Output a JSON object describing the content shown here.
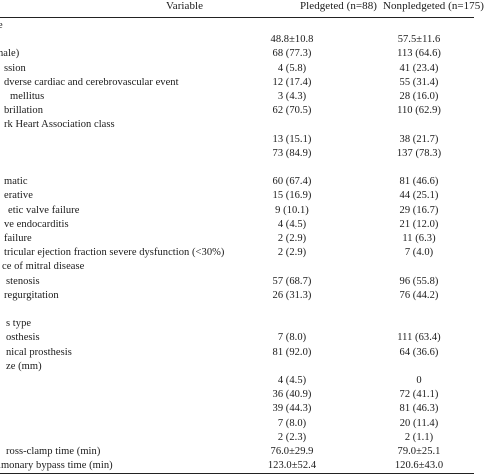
{
  "header": {
    "variable": "Variable",
    "pledgeted": "Pledgeted (n=88)",
    "nonpledgeted": "Nonpledgeted (n=175)"
  },
  "rows": [
    {
      "label": "e",
      "c1": "",
      "c2": ""
    },
    {
      "label": "",
      "c1": "48.8±10.8",
      "c2": "57.5±11.6"
    },
    {
      "label": "nale)",
      "c1": "68 (77.3)",
      "c2": "113 (64.6)"
    },
    {
      "label": "ssion",
      "c1": "4 (5.8)",
      "c2": "41 (23.4)"
    },
    {
      "label": "dverse cardiac and cerebrovascular event",
      "c1": "12 (17.4)",
      "c2": "55 (31.4)"
    },
    {
      "label": "mellitus",
      "c1": "3 (4.3)",
      "c2": "28 (16.0)"
    },
    {
      "label": "brillation",
      "c1": "62 (70.5)",
      "c2": "110 (62.9)"
    },
    {
      "label": "rk Heart Association class",
      "c1": "",
      "c2": ""
    },
    {
      "label": "",
      "c1": "13 (15.1)",
      "c2": "38 (21.7)"
    },
    {
      "label": "",
      "c1": "73 (84.9)",
      "c2": "137 (78.3)"
    },
    {
      "label": "",
      "c1": "",
      "c2": ""
    },
    {
      "label": "matic",
      "c1": "60 (67.4)",
      "c2": "81 (46.6)"
    },
    {
      "label": "erative",
      "c1": "15 (16.9)",
      "c2": "44 (25.1)"
    },
    {
      "label": "etic valve failure",
      "c1": "9 (10.1)",
      "c2": "29 (16.7)"
    },
    {
      "label": "ve endocarditis",
      "c1": "4 (4.5)",
      "c2": "21 (12.0)"
    },
    {
      "label": "failure",
      "c1": "2 (2.9)",
      "c2": "11 (6.3)"
    },
    {
      "label": "tricular ejection fraction severe dysfunction (<30%)",
      "c1": "2 (2.9)",
      "c2": "7 (4.0)"
    },
    {
      "label": "ce of mitral disease",
      "c1": "",
      "c2": ""
    },
    {
      "label": "stenosis",
      "c1": "57 (68.7)",
      "c2": "96 (55.8)"
    },
    {
      "label": "regurgitation",
      "c1": "26 (31.3)",
      "c2": "76 (44.2)"
    },
    {
      "label": "",
      "c1": "",
      "c2": ""
    },
    {
      "label": "s type",
      "c1": "",
      "c2": ""
    },
    {
      "label": "osthesis",
      "c1": "7 (8.0)",
      "c2": "111 (63.4)"
    },
    {
      "label": "nical prosthesis",
      "c1": "81 (92.0)",
      "c2": "64 (36.6)"
    },
    {
      "label": "ze (mm)",
      "c1": "",
      "c2": ""
    },
    {
      "label": "",
      "c1": "4 (4.5)",
      "c2": "0"
    },
    {
      "label": "",
      "c1": "36 (40.9)",
      "c2": "72 (41.1)"
    },
    {
      "label": "",
      "c1": "39 (44.3)",
      "c2": "81 (46.3)"
    },
    {
      "label": "",
      "c1": "7 (8.0)",
      "c2": "20 (11.4)"
    },
    {
      "label": "",
      "c1": "2 (2.3)",
      "c2": "2 (1.1)"
    },
    {
      "label": "ross-clamp time (min)",
      "c1": "76.0±29.9",
      "c2": "79.0±25.1"
    },
    {
      "label": "lmonary bypass time (min)",
      "c1": "123.0±52.4",
      "c2": "120.6±43.0"
    }
  ]
}
